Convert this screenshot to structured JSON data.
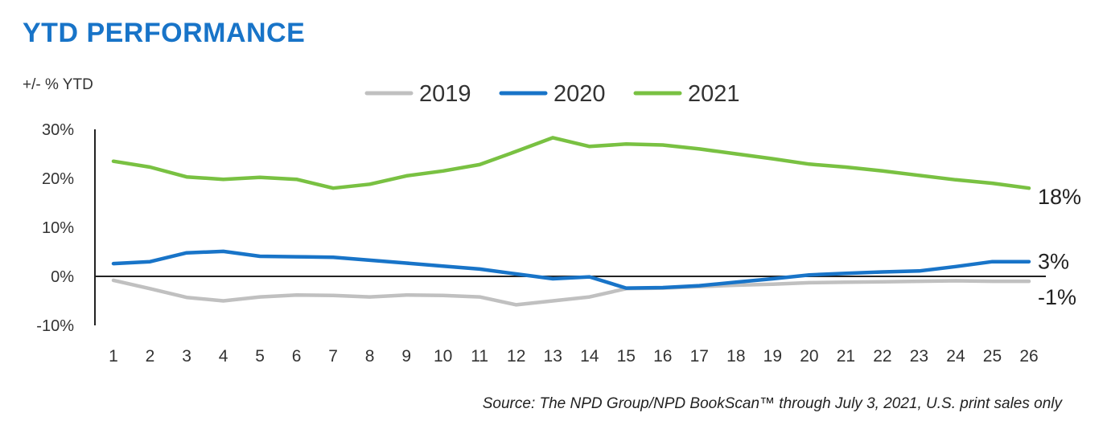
{
  "title": "YTD PERFORMANCE",
  "source": "Source: The NPD Group/NPD BookScan™ through July 3, 2021, U.S. print sales only",
  "colors": {
    "title": "#1874c8",
    "2019": "#c0c0c0",
    "2020": "#1874c8",
    "2021": "#79c142"
  },
  "chart_data": {
    "type": "line",
    "title": "YTD PERFORMANCE",
    "ylabel": "+/- % YTD",
    "xlabel": "",
    "x": [
      1,
      2,
      3,
      4,
      5,
      6,
      7,
      8,
      9,
      10,
      11,
      12,
      13,
      14,
      15,
      16,
      17,
      18,
      19,
      20,
      21,
      22,
      23,
      24,
      25,
      26
    ],
    "ylim": [
      -10,
      30
    ],
    "yticks": [
      "30%",
      "20%",
      "10%",
      "0%",
      "-10%"
    ],
    "ytick_values": [
      30,
      20,
      10,
      0,
      -10
    ],
    "legend_position": "top",
    "grid": false,
    "series": [
      {
        "name": "2019",
        "color": "#c0c0c0",
        "values": [
          -0.8,
          -2.5,
          -4.3,
          -5.0,
          -4.2,
          -3.8,
          -3.9,
          -4.2,
          -3.8,
          -3.9,
          -4.2,
          -5.8,
          -5.0,
          -4.2,
          -2.5,
          -2.4,
          -2.1,
          -1.8,
          -1.6,
          -1.3,
          -1.2,
          -1.1,
          -1.0,
          -0.9,
          -1.0,
          -1.0
        ],
        "end_label": "-1%"
      },
      {
        "name": "2020",
        "color": "#1874c8",
        "values": [
          2.6,
          3.0,
          4.8,
          5.1,
          4.1,
          4.0,
          3.9,
          3.3,
          2.7,
          2.1,
          1.5,
          0.5,
          -0.5,
          -0.1,
          -2.4,
          -2.3,
          -1.9,
          -1.2,
          -0.5,
          0.3,
          0.6,
          0.9,
          1.1,
          2.0,
          3.0,
          3.0
        ],
        "end_label": "3%"
      },
      {
        "name": "2021",
        "color": "#79c142",
        "values": [
          23.5,
          22.3,
          20.3,
          19.8,
          20.2,
          19.8,
          18.0,
          18.8,
          20.5,
          21.5,
          22.8,
          25.5,
          28.3,
          26.5,
          27.0,
          26.8,
          26.0,
          25.0,
          24.0,
          22.9,
          22.3,
          21.5,
          20.6,
          19.7,
          19.0,
          18.0
        ],
        "end_label": "18%"
      }
    ]
  }
}
